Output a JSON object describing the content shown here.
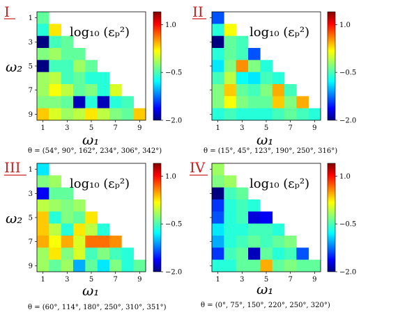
{
  "chart_data": [
    {
      "type": "heatmap",
      "panel_label": "I",
      "title": "log₁₀ (εₚ²)",
      "xlabel": "ω₁",
      "ylabel": "ω₂",
      "x_ticks": [
        "1",
        "3",
        "5",
        "7",
        "9"
      ],
      "y_ticks": [
        "1",
        "3",
        "5",
        "7",
        "9"
      ],
      "colorbar_ticks": [
        "1.0",
        "−0.5",
        "−2.0"
      ],
      "clim": [
        -2.0,
        1.4
      ],
      "caption": "θ = (54°, 90°, 162°, 234°, 306°, 342°)",
      "values": [
        [
          -0.4
        ],
        [
          -0.6,
          0.2
        ],
        [
          -2.0,
          -0.5,
          -0.4
        ],
        [
          -0.3,
          -0.2,
          -0.4,
          -0.4
        ],
        [
          -2.0,
          -0.5,
          -0.5,
          -0.2,
          -0.4
        ],
        [
          -0.2,
          -0.1,
          -0.5,
          -0.4,
          -0.6,
          -0.6
        ],
        [
          -0.2,
          0.1,
          -0.1,
          -0.4,
          -0.3,
          -0.6,
          0.0
        ],
        [
          -0.3,
          -0.3,
          -0.4,
          -1.8,
          -0.6,
          -1.8,
          -0.6,
          -0.5
        ],
        [
          0.3,
          0.0,
          -0.2,
          -0.1,
          0.2,
          -0.1,
          -0.3,
          -0.4,
          0.3
        ]
      ]
    },
    {
      "type": "heatmap",
      "panel_label": "II",
      "title": "log₁₀ (εₚ²)",
      "xlabel": "ω₁",
      "ylabel": "",
      "x_ticks": [
        "1",
        "3",
        "5",
        "7",
        "9"
      ],
      "y_ticks": [],
      "colorbar_ticks": [
        "1.0",
        "−0.5",
        "−2.0"
      ],
      "clim": [
        -2.0,
        1.4
      ],
      "caption": "θ = (15°, 45°, 123°, 190°, 250°, 316°)",
      "values": [
        [
          -1.3
        ],
        [
          -0.6,
          0.1
        ],
        [
          -2.0,
          -0.4,
          -0.5
        ],
        [
          -0.6,
          -0.4,
          -0.5,
          -1.3
        ],
        [
          -0.8,
          -0.3,
          0.5,
          -0.3,
          -0.6
        ],
        [
          -0.5,
          -0.1,
          -0.7,
          -0.8,
          -0.5,
          -0.6
        ],
        [
          -0.3,
          0.3,
          -0.4,
          -0.5,
          -0.3,
          0.4,
          -0.5
        ],
        [
          -0.3,
          0.1,
          -0.3,
          -0.4,
          -0.4,
          0.3,
          -0.3,
          0.4
        ],
        [
          -0.6,
          -0.5,
          -0.6,
          -0.6,
          -0.6,
          -0.5,
          -0.4,
          -0.5,
          -0.6
        ]
      ]
    },
    {
      "type": "heatmap",
      "panel_label": "III",
      "title": "log₁₀ (εₚ²)",
      "xlabel": "ω₁",
      "ylabel": "ω₂",
      "x_ticks": [
        "1",
        "3",
        "5",
        "7",
        "9"
      ],
      "y_ticks": [
        "1",
        "3",
        "5",
        "7",
        "9"
      ],
      "colorbar_ticks": [
        "1.0",
        "−0.5",
        "−2.0"
      ],
      "clim": [
        -2.0,
        1.4
      ],
      "caption": "θ = (60°, 114°, 180°, 250°, 310°, 351°)",
      "values": [
        [
          -0.8
        ],
        [
          -0.3,
          -0.2
        ],
        [
          -1.6,
          -0.4,
          -0.4
        ],
        [
          -0.1,
          -0.2,
          -0.3,
          -0.2
        ],
        [
          0.3,
          -0.6,
          -0.3,
          -0.4,
          0.2
        ],
        [
          0.3,
          -0.1,
          -0.6,
          0.2,
          -0.1,
          -0.6
        ],
        [
          0.4,
          0.1,
          0.4,
          0.0,
          0.6,
          0.6,
          0.5
        ],
        [
          -0.2,
          0.2,
          -0.3,
          0.0,
          -0.5,
          -0.3,
          -0.5,
          -0.6
        ],
        [
          -0.2,
          -0.4,
          -0.2,
          -1.0,
          -0.4,
          -0.8,
          -0.3,
          -0.6,
          -0.4
        ]
      ]
    },
    {
      "type": "heatmap",
      "panel_label": "IV",
      "title": "log₁₀ (εₚ²)",
      "xlabel": "ω₁",
      "ylabel": "",
      "x_ticks": [
        "1",
        "3",
        "5",
        "7",
        "9"
      ],
      "y_ticks": [],
      "colorbar_ticks": [
        "1.0",
        "−0.5",
        "−2.0"
      ],
      "clim": [
        -2.0,
        1.4
      ],
      "caption": "θ = (0°, 75°, 150°, 220°, 250°, 320°)",
      "values": [
        [
          -0.2
        ],
        [
          -0.3,
          -0.2
        ],
        [
          -2.0,
          -0.5,
          -0.4
        ],
        [
          -1.4,
          -0.6,
          -0.5,
          -0.6
        ],
        [
          -1.3,
          -0.6,
          -0.5,
          -1.7,
          -1.6
        ],
        [
          -0.8,
          -0.6,
          -0.6,
          -0.5,
          -0.5,
          -0.6
        ],
        [
          -1.0,
          -0.6,
          -0.5,
          -0.4,
          -0.5,
          -0.4,
          -0.3
        ],
        [
          -1.4,
          -0.5,
          -0.4,
          -1.8,
          -0.4,
          -0.6,
          -0.5,
          -1.3
        ],
        [
          -0.6,
          -0.6,
          -0.4,
          -0.4,
          0.4,
          -0.4,
          -0.3,
          -0.4,
          -0.4
        ]
      ]
    }
  ]
}
